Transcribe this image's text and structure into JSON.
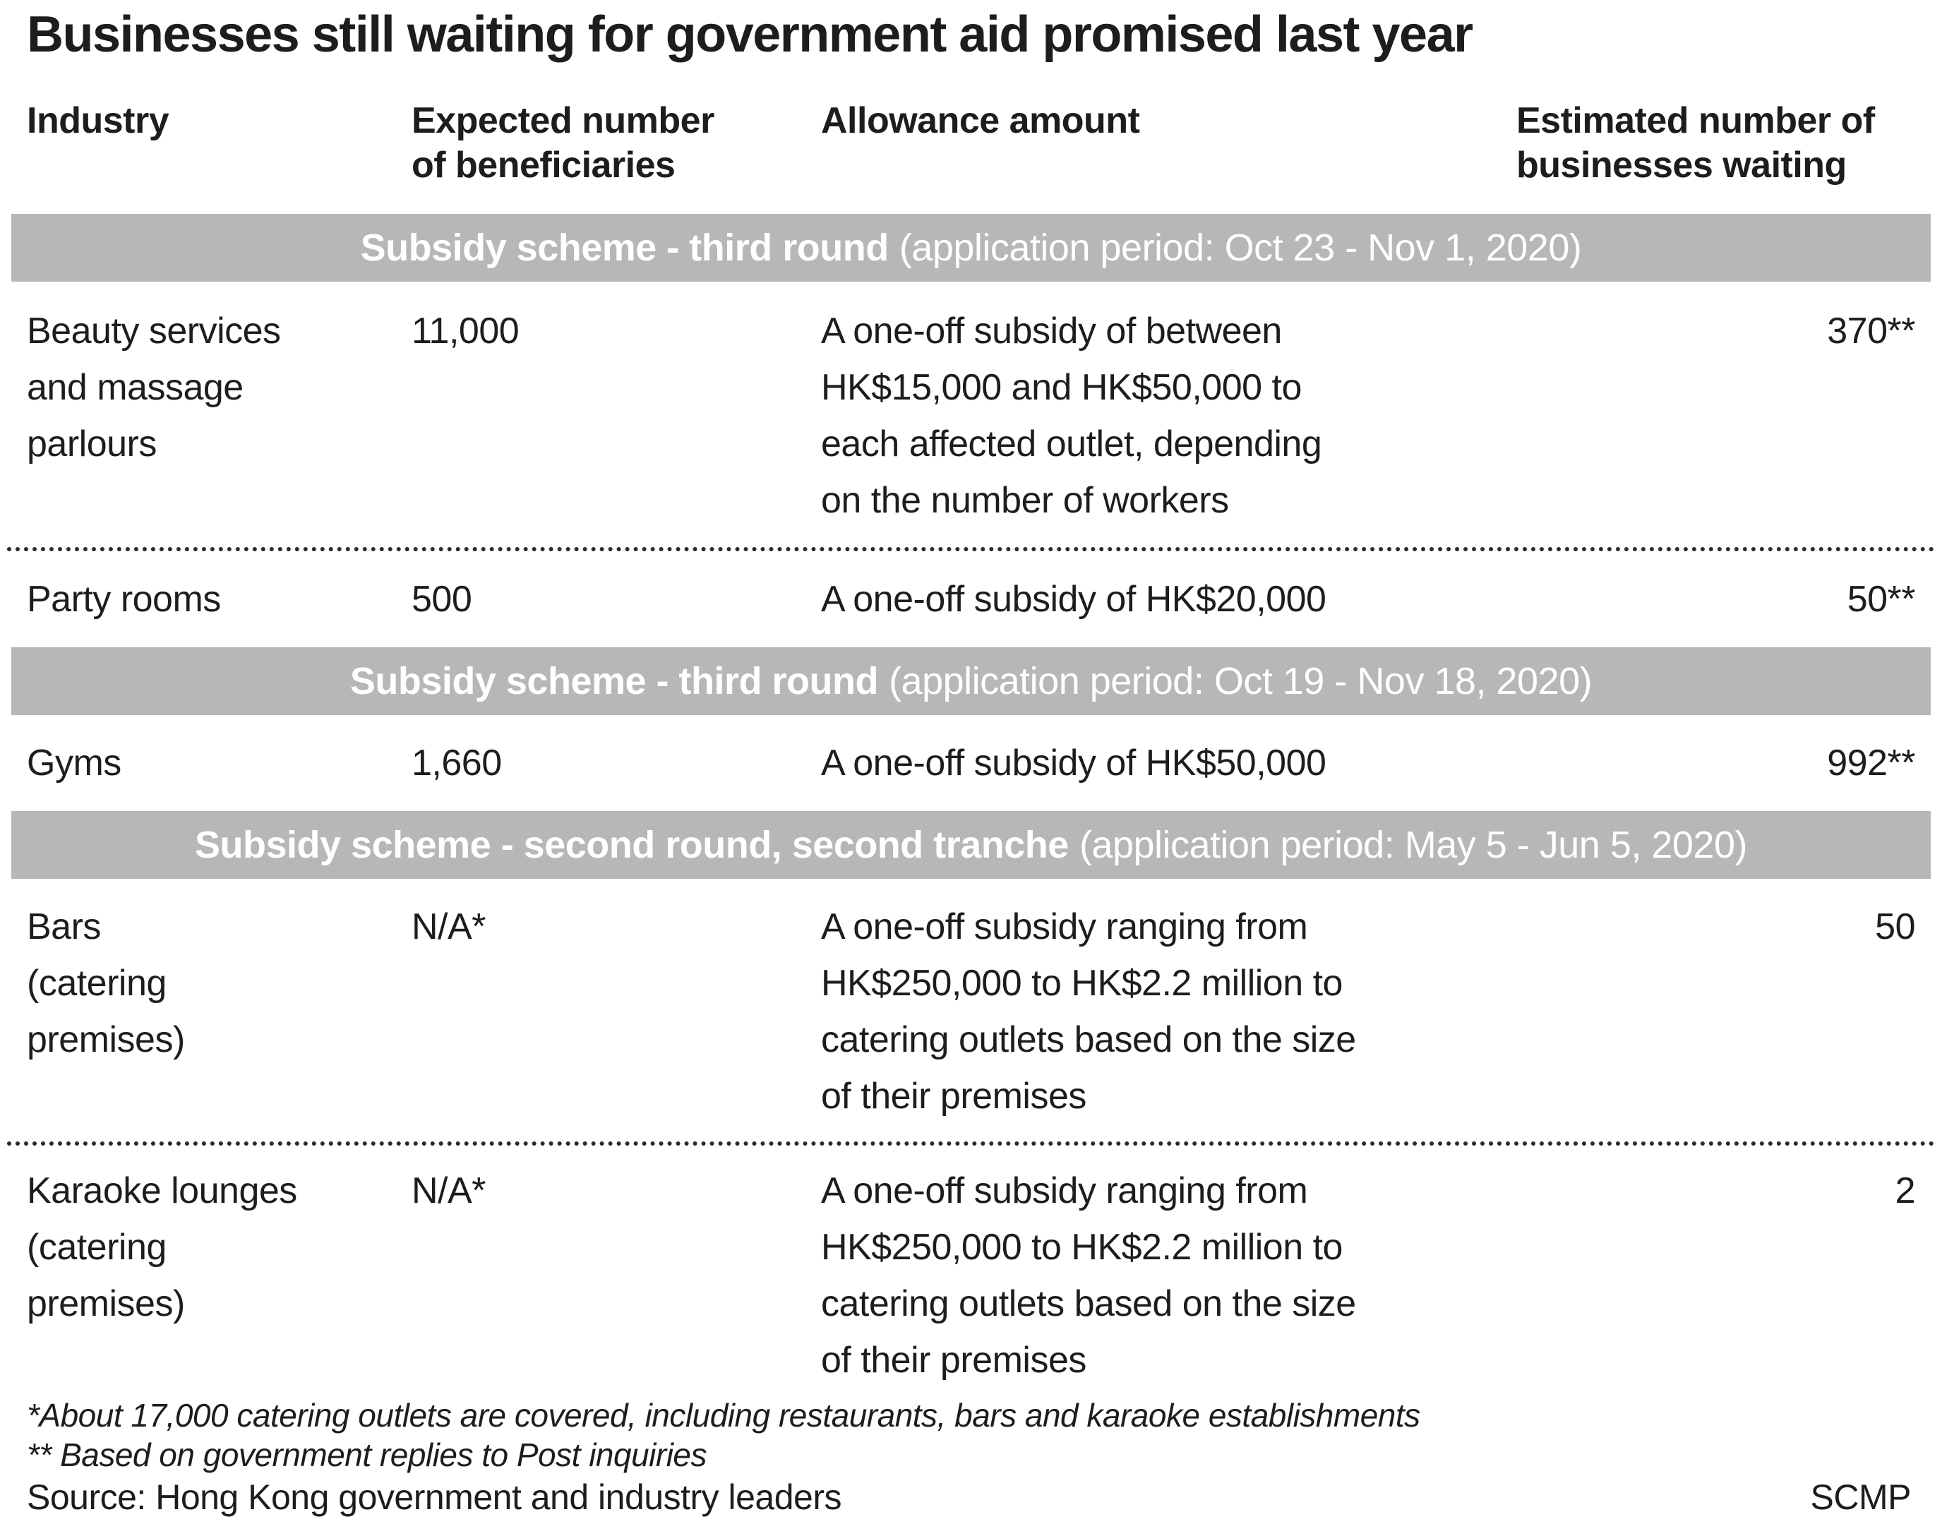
{
  "title": "Businesses still waiting for government aid promised last year",
  "colors": {
    "band_bg": "#b7b7b7",
    "band_text": "#ffffff",
    "text": "#1d1d1b"
  },
  "table": {
    "headers": {
      "industry": "Industry",
      "beneficiaries": "Expected number\nof beneficiaries",
      "allowance": "Allowance amount",
      "waiting": "Estimated number of\nbusinesses waiting"
    },
    "sections": [
      {
        "band_bold": "Subsidy scheme - third round",
        "band_period": "(application period: Oct 23 - Nov 1, 2020)",
        "rows": [
          {
            "industry": "Beauty services\nand massage\nparlours",
            "beneficiaries": "11,000",
            "allowance": "A one-off subsidy of between\nHK$15,000 and HK$50,000 to\neach affected outlet, depending\non the number of workers",
            "waiting": "370**"
          },
          {
            "industry": "Party rooms",
            "beneficiaries": "500",
            "allowance": "A one-off subsidy of HK$20,000",
            "waiting": "50**"
          }
        ]
      },
      {
        "band_bold": "Subsidy scheme - third round",
        "band_period": "(application period: Oct 19 - Nov 18, 2020)",
        "rows": [
          {
            "industry": "Gyms",
            "beneficiaries": "1,660",
            "allowance": "A one-off subsidy of HK$50,000",
            "waiting": "992**"
          }
        ]
      },
      {
        "band_bold": "Subsidy scheme - second round, second tranche",
        "band_period": "(application period: May 5 - Jun 5, 2020)",
        "rows": [
          {
            "industry": "Bars\n(catering\npremises)",
            "beneficiaries": "N/A*",
            "allowance": "A one-off subsidy ranging from\nHK$250,000 to HK$2.2 million to\ncatering outlets based on the size\nof their premises",
            "waiting": "50"
          },
          {
            "industry": "Karaoke lounges\n(catering\npremises)",
            "beneficiaries": "N/A*",
            "allowance": "A one-off subsidy ranging from\nHK$250,000 to HK$2.2 million to\ncatering outlets based on the size\nof their premises",
            "waiting": "2"
          }
        ]
      }
    ]
  },
  "footnotes": [
    "*About 17,000 catering outlets are covered, including restaurants, bars and karaoke establishments",
    "** Based on government replies to Post inquiries"
  ],
  "source": "Source: Hong Kong government and industry leaders",
  "credit": "SCMP",
  "chart_data": {
    "type": "table",
    "title": "Businesses still waiting for government aid promised last year",
    "columns": [
      "Industry",
      "Expected number of beneficiaries",
      "Allowance amount",
      "Estimated number of businesses waiting"
    ],
    "sections": [
      {
        "section": "Subsidy scheme - third round (application period: Oct 23 - Nov 1, 2020)",
        "rows": [
          [
            "Beauty services and massage parlours",
            "11,000",
            "A one-off subsidy of between HK$15,000 and HK$50,000 to each affected outlet, depending on the number of workers",
            "370**"
          ],
          [
            "Party rooms",
            "500",
            "A one-off subsidy of HK$20,000",
            "50**"
          ]
        ]
      },
      {
        "section": "Subsidy scheme - third round (application period: Oct 19 - Nov 18, 2020)",
        "rows": [
          [
            "Gyms",
            "1,660",
            "A one-off subsidy of HK$50,000",
            "992**"
          ]
        ]
      },
      {
        "section": "Subsidy scheme - second round, second tranche (application period: May 5 - Jun 5, 2020)",
        "rows": [
          [
            "Bars (catering premises)",
            "N/A*",
            "A one-off subsidy ranging from HK$250,000 to HK$2.2 million to catering outlets based on the size of their premises",
            "50"
          ],
          [
            "Karaoke lounges (catering premises)",
            "N/A*",
            "A one-off subsidy ranging from HK$250,000 to HK$2.2 million to catering outlets based on the size of their premises",
            "2"
          ]
        ]
      }
    ],
    "footnotes": [
      "*About 17,000 catering outlets are covered, including restaurants, bars and karaoke establishments",
      "** Based on government replies to Post inquiries"
    ],
    "source": "Hong Kong government and industry leaders",
    "credit": "SCMP"
  }
}
